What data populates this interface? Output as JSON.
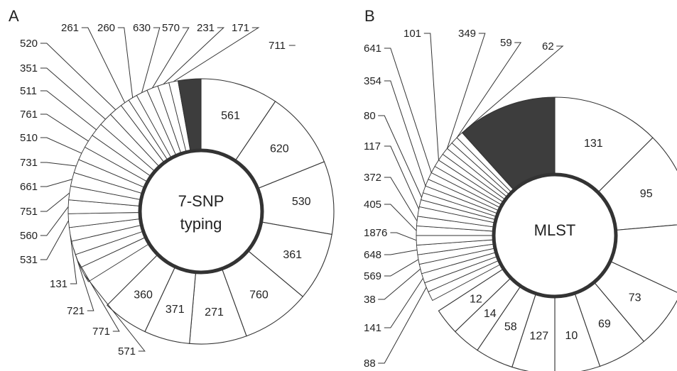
{
  "chart_data": [
    {
      "type": "pie",
      "panel": "A",
      "center_label": [
        "7-SNP",
        "typing"
      ],
      "inside_labels": [
        "561",
        "620",
        "530",
        "361",
        "760",
        "271",
        "371",
        "360"
      ],
      "outside_labels": [
        "571",
        "771",
        "721",
        "131",
        "531",
        "560",
        "751",
        "661",
        "731",
        "510",
        "761",
        "511",
        "351",
        "520",
        "261",
        "260",
        "630",
        "570",
        "231",
        "171",
        "711"
      ],
      "highlight_color": "#3d3d3d"
    },
    {
      "type": "pie",
      "panel": "B",
      "center_label": [
        "MLST"
      ],
      "inside_labels": [
        "131",
        "95",
        "",
        "73",
        "69",
        "10",
        "127",
        "58",
        "14",
        "12"
      ],
      "outside_labels": [
        "88",
        "141",
        "38",
        "569",
        "648",
        "1876",
        "405",
        "372",
        "117",
        "80",
        "354",
        "641",
        "101",
        "349",
        "59",
        "62"
      ],
      "highlight_color": "#3d3d3d"
    }
  ]
}
